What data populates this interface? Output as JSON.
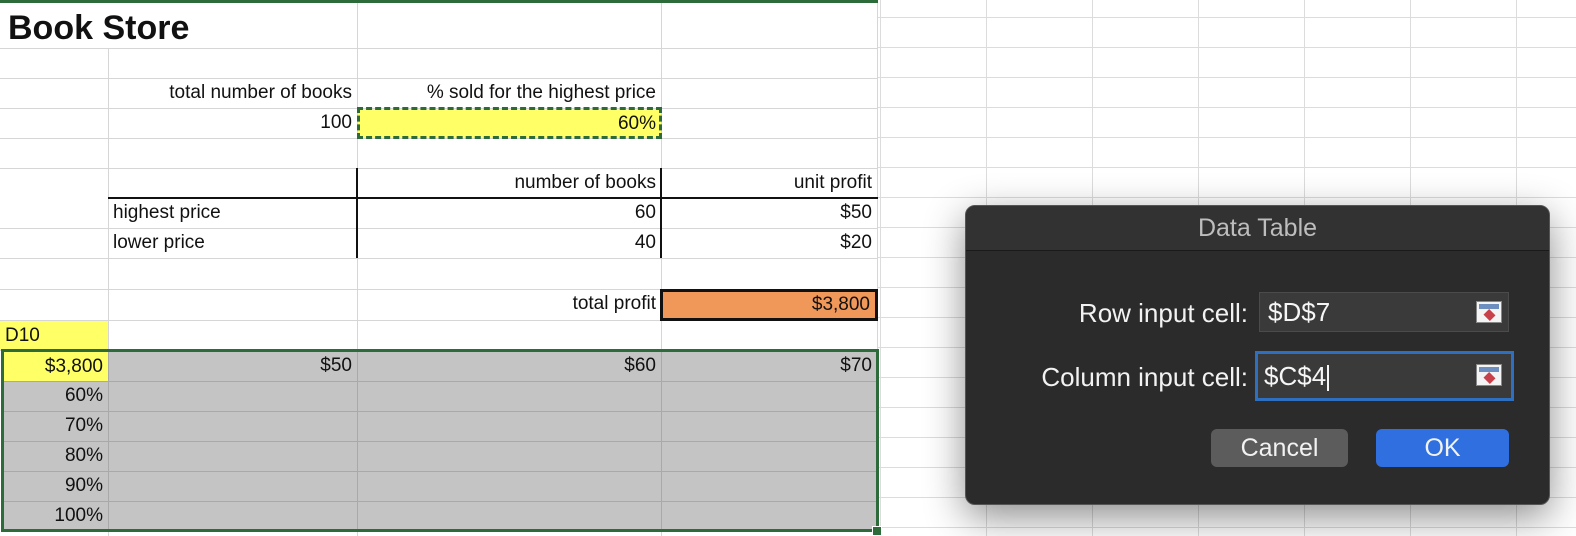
{
  "sheet": {
    "title": "Book Store",
    "header_total_books": "total number of books",
    "header_pct_sold": "% sold for the highest price",
    "total_books_value": "100",
    "pct_sold_value": "60%",
    "col_number_of_books": "number of books",
    "col_unit_profit": "unit profit",
    "row_highest_price": "highest price",
    "row_lower_price": "lower price",
    "highest_number": "60",
    "highest_unit_profit": "$50",
    "lower_number": "40",
    "lower_unit_profit": "$20",
    "total_profit_label": "total profit",
    "total_profit_value": "$3,800",
    "ref_cell": "D10",
    "table_corner": "$3,800",
    "table_cols": [
      "$50",
      "$60",
      "$70"
    ],
    "table_rows": [
      "60%",
      "70%",
      "80%",
      "90%",
      "100%"
    ]
  },
  "dialog": {
    "title": "Data Table",
    "row_input_label": "Row input cell:",
    "row_input_value": "$D$7",
    "column_input_label": "Column input cell:",
    "column_input_value": "$C$4",
    "cancel_label": "Cancel",
    "ok_label": "OK",
    "collapse_icon": "range-selector-icon"
  },
  "colors": {
    "yellow_highlight": "#ffff66",
    "orange_highlight": "#f0975a",
    "selection_gray": "#c4c4c4",
    "selection_border": "#2e6b3a",
    "ok_button": "#2f6fe0"
  }
}
